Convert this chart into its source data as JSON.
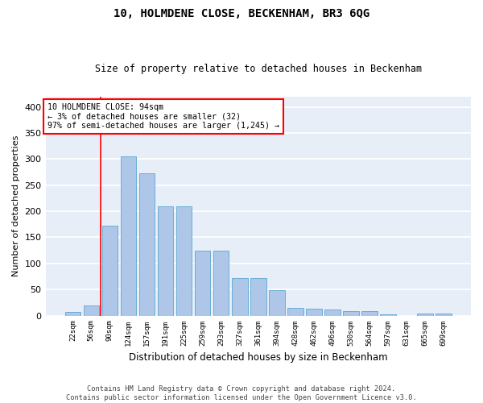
{
  "title": "10, HOLMDENE CLOSE, BECKENHAM, BR3 6QG",
  "subtitle": "Size of property relative to detached houses in Beckenham",
  "xlabel": "Distribution of detached houses by size in Beckenham",
  "ylabel": "Number of detached properties",
  "bar_color": "#aec6e8",
  "bar_edge_color": "#6aaed6",
  "background_color": "#e8eef8",
  "categories": [
    "22sqm",
    "56sqm",
    "90sqm",
    "124sqm",
    "157sqm",
    "191sqm",
    "225sqm",
    "259sqm",
    "293sqm",
    "327sqm",
    "361sqm",
    "394sqm",
    "428sqm",
    "462sqm",
    "496sqm",
    "530sqm",
    "564sqm",
    "597sqm",
    "631sqm",
    "665sqm",
    "699sqm"
  ],
  "values": [
    7,
    20,
    172,
    305,
    272,
    210,
    210,
    124,
    124,
    72,
    72,
    48,
    15,
    13,
    11,
    9,
    8,
    3,
    0,
    4,
    4
  ],
  "annotation_line1": "10 HOLMDENE CLOSE: 94sqm",
  "annotation_line2": "← 3% of detached houses are smaller (32)",
  "annotation_line3": "97% of semi-detached houses are larger (1,245) →",
  "footer1": "Contains HM Land Registry data © Crown copyright and database right 2024.",
  "footer2": "Contains public sector information licensed under the Open Government Licence v3.0.",
  "ylim": [
    0,
    420
  ],
  "yticks": [
    0,
    50,
    100,
    150,
    200,
    250,
    300,
    350,
    400
  ],
  "red_line_index": 2,
  "red_line_side": "left"
}
